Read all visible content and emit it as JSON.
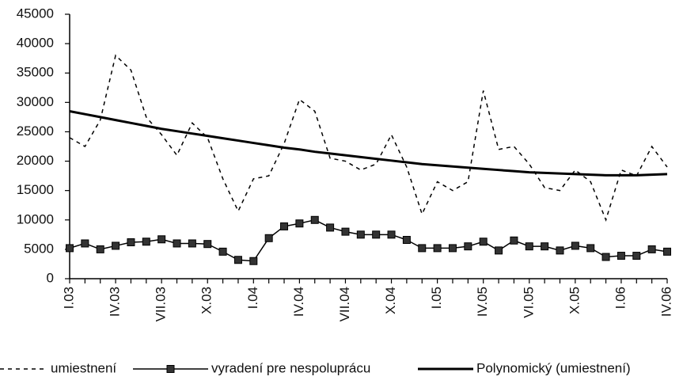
{
  "chart_data": {
    "type": "line",
    "categories": [
      "I.03",
      null,
      null,
      "IV.03",
      null,
      null,
      "VII.03",
      null,
      null,
      "X.03",
      null,
      null,
      "I.04",
      null,
      null,
      "IV.04",
      null,
      null,
      "VII.04",
      null,
      null,
      "X.04",
      null,
      null,
      "I.05",
      null,
      null,
      "IV.05",
      null,
      null,
      "VI.05",
      null,
      null,
      "X.05",
      null,
      null,
      "I.06",
      null,
      null,
      "IV.06"
    ],
    "series": [
      {
        "name": "umiestnení",
        "color": "#000000",
        "dash": true,
        "marker": null,
        "values": [
          24000,
          22500,
          27000,
          38000,
          35500,
          27500,
          24500,
          21000,
          26500,
          24000,
          17000,
          11500,
          17000,
          17500,
          23000,
          30500,
          28500,
          20500,
          20000,
          18500,
          19500,
          24500,
          19000,
          11000,
          16500,
          15000,
          16500,
          32000,
          22000,
          22500,
          19500,
          15500,
          15000,
          18500,
          16500,
          10000,
          18500,
          17500,
          22500,
          19000
        ]
      },
      {
        "name": "vyradení pre nespoluprácu",
        "color": "#000000",
        "dash": false,
        "marker": "square",
        "values": [
          5200,
          6000,
          5000,
          5600,
          6200,
          6300,
          6700,
          6000,
          6000,
          5900,
          4600,
          3200,
          3000,
          6900,
          8900,
          9400,
          10000,
          8700,
          8000,
          7500,
          7500,
          7500,
          6600,
          5200,
          5200,
          5200,
          5500,
          6300,
          4800,
          6500,
          5500,
          5500,
          4800,
          5600,
          5200,
          3700,
          3900,
          3900,
          5000,
          4600
        ]
      },
      {
        "name": "Polynomický (umiestnení)",
        "color": "#000000",
        "dash": false,
        "marker": null,
        "width": 3,
        "values": [
          28500,
          28000,
          27500,
          27000,
          26500,
          26000,
          25500,
          25100,
          24700,
          24300,
          23900,
          23500,
          23100,
          22700,
          22300,
          22000,
          21600,
          21300,
          21000,
          20700,
          20400,
          20100,
          19800,
          19500,
          19300,
          19100,
          18900,
          18700,
          18500,
          18300,
          18100,
          18000,
          17900,
          17800,
          17700,
          17600,
          17600,
          17600,
          17700,
          17800
        ]
      }
    ],
    "ylim": [
      0,
      45000
    ],
    "yticks": [
      0,
      5000,
      10000,
      15000,
      20000,
      25000,
      30000,
      35000,
      40000,
      45000
    ],
    "grid": false,
    "legend": "bottom"
  }
}
